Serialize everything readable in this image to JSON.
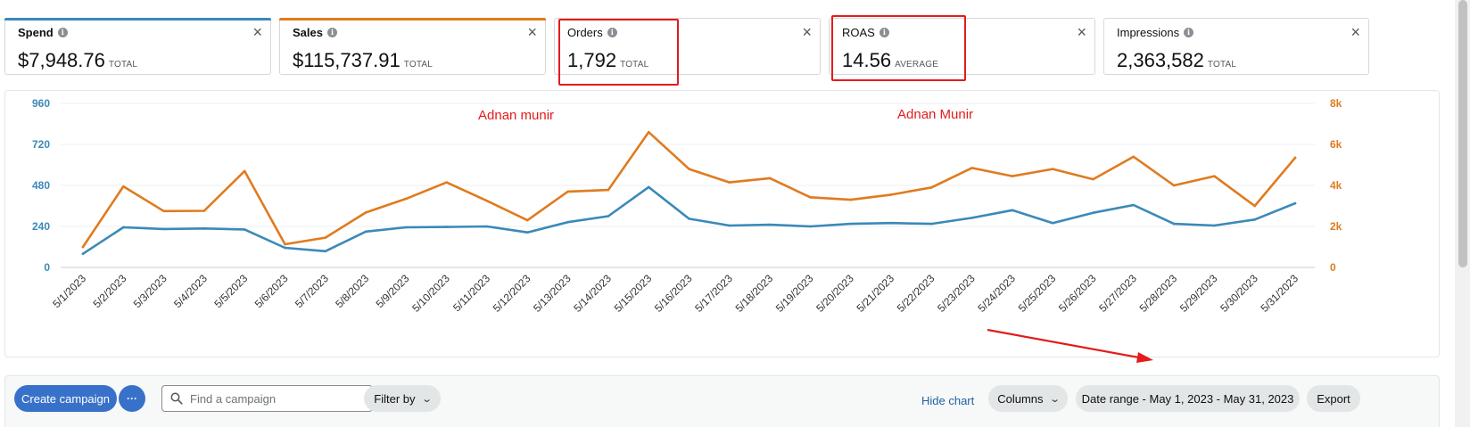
{
  "metrics": [
    {
      "name": "Spend",
      "value": "$7,948.76",
      "unit": "TOTAL",
      "color": "#3a89b8",
      "bold": true
    },
    {
      "name": "Sales",
      "value": "$115,737.91",
      "unit": "TOTAL",
      "color": "#e07b1f",
      "bold": true
    },
    {
      "name": "Orders",
      "value": "1,792",
      "unit": "TOTAL",
      "color": "",
      "bold": false
    },
    {
      "name": "ROAS",
      "value": "14.56",
      "unit": "AVERAGE",
      "color": "",
      "bold": false
    },
    {
      "name": "Impressions",
      "value": "2,363,582",
      "unit": "TOTAL",
      "color": "",
      "bold": false
    }
  ],
  "close_symbol": "×",
  "info_symbol": "i",
  "annotations": {
    "text1": "Adnan munir",
    "text2": "Adnan Munir",
    "color": "#e31b1b"
  },
  "chart_data": {
    "type": "line",
    "categories": [
      "5/1/2023",
      "5/2/2023",
      "5/3/2023",
      "5/4/2023",
      "5/5/2023",
      "5/6/2023",
      "5/7/2023",
      "5/8/2023",
      "5/9/2023",
      "5/10/2023",
      "5/11/2023",
      "5/12/2023",
      "5/13/2023",
      "5/14/2023",
      "5/15/2023",
      "5/16/2023",
      "5/17/2023",
      "5/18/2023",
      "5/19/2023",
      "5/20/2023",
      "5/21/2023",
      "5/22/2023",
      "5/23/2023",
      "5/24/2023",
      "5/25/2023",
      "5/26/2023",
      "5/27/2023",
      "5/28/2023",
      "5/29/2023",
      "5/30/2023",
      "5/31/2023"
    ],
    "series": [
      {
        "name": "Spend",
        "axis": "left",
        "color": "#3a89b8",
        "values": [
          80,
          235,
          225,
          228,
          222,
          115,
          95,
          210,
          235,
          237,
          240,
          205,
          265,
          300,
          470,
          285,
          245,
          250,
          240,
          255,
          260,
          255,
          290,
          335,
          260,
          320,
          365,
          255,
          245,
          280,
          375
        ]
      },
      {
        "name": "Sales",
        "axis": "right",
        "color": "#e07b1f",
        "values": [
          1000,
          3950,
          2750,
          2760,
          4700,
          1130,
          1450,
          2680,
          3350,
          4150,
          3250,
          2300,
          3700,
          3780,
          6600,
          4800,
          4150,
          4350,
          3420,
          3300,
          3550,
          3900,
          4850,
          4450,
          4800,
          4300,
          5400,
          4000,
          4450,
          3000,
          5350
        ]
      }
    ],
    "y_left": {
      "ylim": [
        0,
        960
      ],
      "ticks": [
        "0",
        "240",
        "480",
        "720",
        "960"
      ],
      "color": "#3a89b8"
    },
    "y_right": {
      "ylim": [
        0,
        8000
      ],
      "ticks": [
        "0",
        "2k",
        "4k",
        "6k",
        "8k"
      ],
      "color": "#e07b1f"
    },
    "grid": true
  },
  "toolbar": {
    "create_campaign": "Create campaign",
    "more": "···",
    "search_placeholder": "Find a campaign",
    "filter_by": "Filter by",
    "hide_chart": "Hide chart",
    "columns": "Columns",
    "date_range": "Date range - May 1, 2023 - May 31, 2023",
    "export": "Export"
  }
}
